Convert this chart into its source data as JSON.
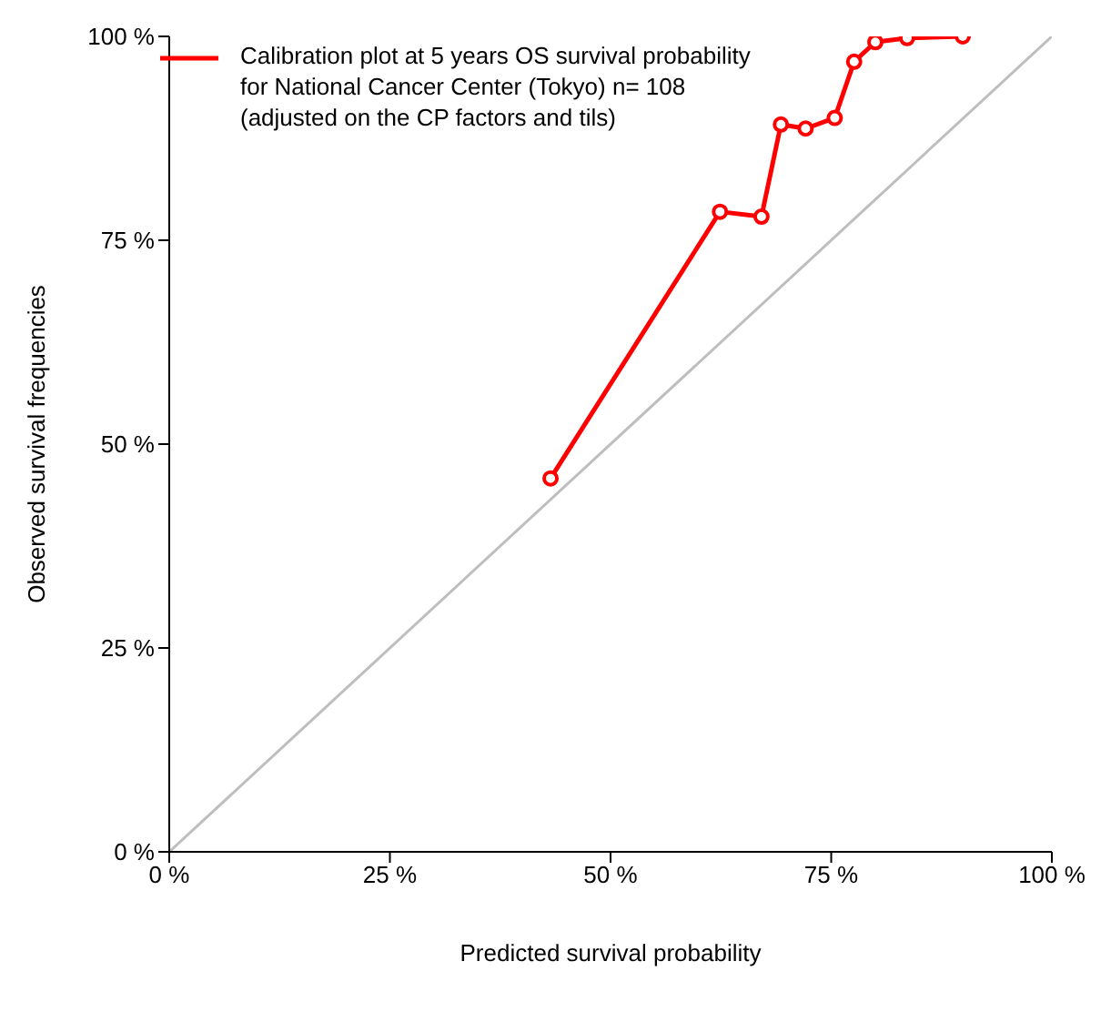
{
  "chart_data": {
    "type": "line",
    "xlabel": "Predicted survival probability",
    "ylabel": "Observed survival frequencies",
    "xlim": [
      0,
      100
    ],
    "ylim": [
      0,
      100
    ],
    "xticks": [
      {
        "value": 0,
        "label": "0 %"
      },
      {
        "value": 25,
        "label": "25 %"
      },
      {
        "value": 50,
        "label": "50 %"
      },
      {
        "value": 75,
        "label": "75 %"
      },
      {
        "value": 100,
        "label": "100 %"
      }
    ],
    "yticks": [
      {
        "value": 0,
        "label": "0 %"
      },
      {
        "value": 25,
        "label": "25 %"
      },
      {
        "value": 50,
        "label": "50 %"
      },
      {
        "value": 75,
        "label": "75 %"
      },
      {
        "value": 100,
        "label": "100 %"
      }
    ],
    "grid": false,
    "legend": "top left",
    "series": [
      {
        "name": "Calibration plot at 5 years OS survival probability\n for National Cancer Center (Tokyo) n= 108\n(adjusted on the CP factors and tils)",
        "color": "#ff0000",
        "marker": "circle",
        "x": [
          43.2,
          62.4,
          67.1,
          69.3,
          72.1,
          75.4,
          77.6,
          80.0,
          83.6,
          89.9
        ],
        "values": [
          45.8,
          78.5,
          77.9,
          89.2,
          88.7,
          90.0,
          96.9,
          99.3,
          99.8,
          100
        ]
      },
      {
        "color": "#bebebe",
        "marker": "none",
        "x": [
          0,
          100
        ],
        "values": [
          0,
          100
        ]
      }
    ]
  }
}
